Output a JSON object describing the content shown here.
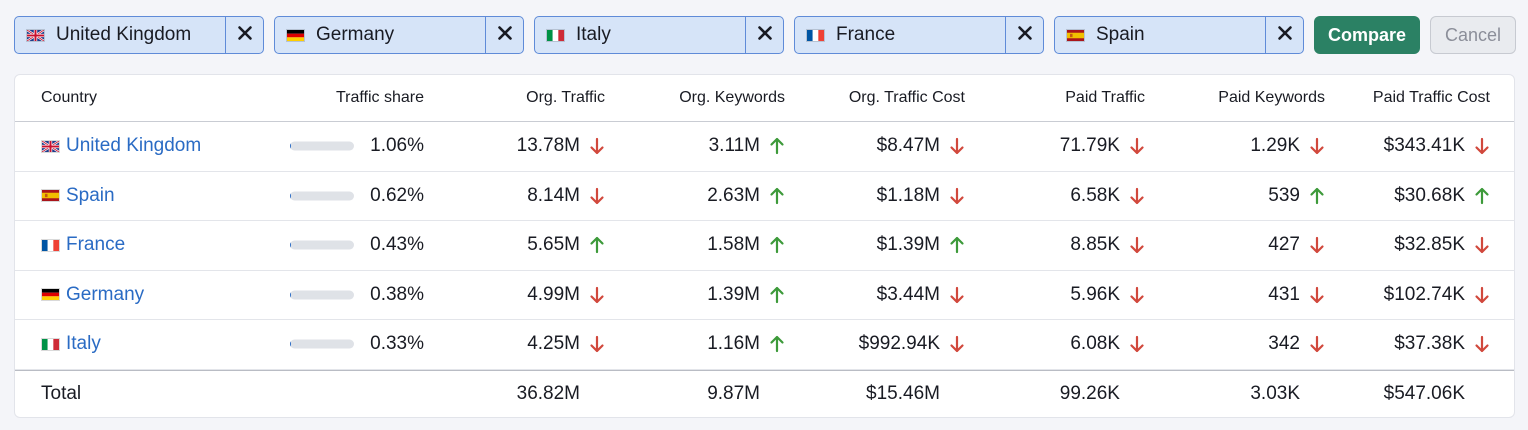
{
  "filters": [
    {
      "label": "United Kingdom",
      "flag": "gb-flag-icon"
    },
    {
      "label": "Germany",
      "flag": "de-flag-icon"
    },
    {
      "label": "Italy",
      "flag": "it-flag-icon"
    },
    {
      "label": "France",
      "flag": "fr-flag-icon"
    },
    {
      "label": "Spain",
      "flag": "es-flag-icon"
    }
  ],
  "buttons": {
    "compare": "Compare",
    "cancel": "Cancel"
  },
  "colors": {
    "accent": "#2b8164",
    "link": "#2a6bc4",
    "down": "#d1483c",
    "up": "#3d9a3a",
    "chip_bg": "#d6e4f8",
    "chip_border": "#5f8bd8"
  },
  "table": {
    "headers": [
      "Country",
      "Traffic share",
      "Org. Traffic",
      "Org. Keywords",
      "Org. Traffic Cost",
      "Paid Traffic",
      "Paid Keywords",
      "Paid Traffic Cost"
    ],
    "rows": [
      {
        "country": "United Kingdom",
        "flag": "gb",
        "share": "1.06%",
        "share_fraction": 0.0106,
        "org_traffic": "13.78M",
        "org_traffic_dir": "down",
        "org_keywords": "3.11M",
        "org_keywords_dir": "up",
        "org_cost": "$8.47M",
        "org_cost_dir": "down",
        "paid_traffic": "71.79K",
        "paid_traffic_dir": "down",
        "paid_keywords": "1.29K",
        "paid_keywords_dir": "down",
        "paid_cost": "$343.41K",
        "paid_cost_dir": "down"
      },
      {
        "country": "Spain",
        "flag": "es",
        "share": "0.62%",
        "share_fraction": 0.0062,
        "org_traffic": "8.14M",
        "org_traffic_dir": "down",
        "org_keywords": "2.63M",
        "org_keywords_dir": "up",
        "org_cost": "$1.18M",
        "org_cost_dir": "down",
        "paid_traffic": "6.58K",
        "paid_traffic_dir": "down",
        "paid_keywords": "539",
        "paid_keywords_dir": "up",
        "paid_cost": "$30.68K",
        "paid_cost_dir": "up"
      },
      {
        "country": "France",
        "flag": "fr",
        "share": "0.43%",
        "share_fraction": 0.0043,
        "org_traffic": "5.65M",
        "org_traffic_dir": "up",
        "org_keywords": "1.58M",
        "org_keywords_dir": "up",
        "org_cost": "$1.39M",
        "org_cost_dir": "up",
        "paid_traffic": "8.85K",
        "paid_traffic_dir": "down",
        "paid_keywords": "427",
        "paid_keywords_dir": "down",
        "paid_cost": "$32.85K",
        "paid_cost_dir": "down"
      },
      {
        "country": "Germany",
        "flag": "de",
        "share": "0.38%",
        "share_fraction": 0.0038,
        "org_traffic": "4.99M",
        "org_traffic_dir": "down",
        "org_keywords": "1.39M",
        "org_keywords_dir": "up",
        "org_cost": "$3.44M",
        "org_cost_dir": "down",
        "paid_traffic": "5.96K",
        "paid_traffic_dir": "down",
        "paid_keywords": "431",
        "paid_keywords_dir": "down",
        "paid_cost": "$102.74K",
        "paid_cost_dir": "down"
      },
      {
        "country": "Italy",
        "flag": "it",
        "share": "0.33%",
        "share_fraction": 0.0033,
        "org_traffic": "4.25M",
        "org_traffic_dir": "down",
        "org_keywords": "1.16M",
        "org_keywords_dir": "up",
        "org_cost": "$992.94K",
        "org_cost_dir": "down",
        "paid_traffic": "6.08K",
        "paid_traffic_dir": "down",
        "paid_keywords": "342",
        "paid_keywords_dir": "down",
        "paid_cost": "$37.38K",
        "paid_cost_dir": "down"
      }
    ],
    "total": {
      "label": "Total",
      "org_traffic": "36.82M",
      "org_keywords": "9.87M",
      "org_cost": "$15.46M",
      "paid_traffic": "99.26K",
      "paid_keywords": "3.03K",
      "paid_cost": "$547.06K"
    }
  }
}
